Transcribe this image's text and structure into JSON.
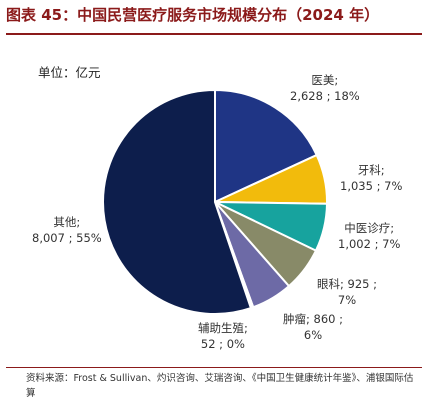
{
  "title": "图表 45：中国民营医疗服务市场规模分布（2024 年）",
  "unit_label": "单位：亿元",
  "source": "资料来源：Frost & Sullivan、灼识咨询、艾瑞咨询、《中国卫生健康统计年鉴》、浦银国际估算",
  "chart_data": {
    "type": "pie",
    "title": "",
    "unit": "亿元",
    "slices": [
      {
        "name": "医美",
        "value": 2628,
        "value_label": "2,628",
        "pct_label": "18%",
        "color": "#1f3585"
      },
      {
        "name": "牙科",
        "value": 1035,
        "value_label": "1,035",
        "pct_label": "7%",
        "color": "#f2bb0c"
      },
      {
        "name": "中医诊疗",
        "value": 1002,
        "value_label": "1,002",
        "pct_label": "7%",
        "color": "#17a39e"
      },
      {
        "name": "眼科",
        "value": 925,
        "value_label": "925",
        "pct_label": "7%",
        "color": "#888a68"
      },
      {
        "name": "肿瘤",
        "value": 860,
        "value_label": "860",
        "pct_label": "6%",
        "color": "#6d6aa6"
      },
      {
        "name": "辅助生殖",
        "value": 52,
        "value_label": "52",
        "pct_label": "0%",
        "color": "#ffffff"
      },
      {
        "name": "其他",
        "value": 8007,
        "value_label": "8,007",
        "pct_label": "55%",
        "color": "#0d1e4c"
      }
    ]
  }
}
